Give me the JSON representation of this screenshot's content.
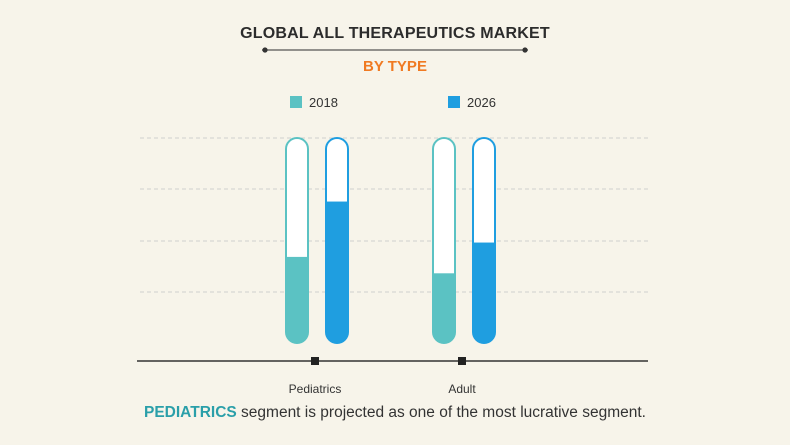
{
  "colors": {
    "background": "#f7f4ea",
    "series_2018": "#5bc2c3",
    "series_2026": "#1f9ee0",
    "subtitle": "#f07a22",
    "highlight": "#2a9fa9"
  },
  "chart_data": {
    "type": "bar",
    "title": "GLOBAL ALL THERAPEUTICS MARKET",
    "subtitle": "BY TYPE",
    "categories": [
      "Pediatrics",
      "Adult"
    ],
    "series": [
      {
        "name": "2018",
        "values": [
          42,
          34
        ]
      },
      {
        "name": "2026",
        "values": [
          69,
          49
        ]
      }
    ],
    "ylim": [
      0,
      100
    ],
    "grid": true,
    "legend_position": "top"
  },
  "footer": {
    "highlight": "PEDIATRICS",
    "rest": " segment is projected as one of the most lucrative segment."
  }
}
